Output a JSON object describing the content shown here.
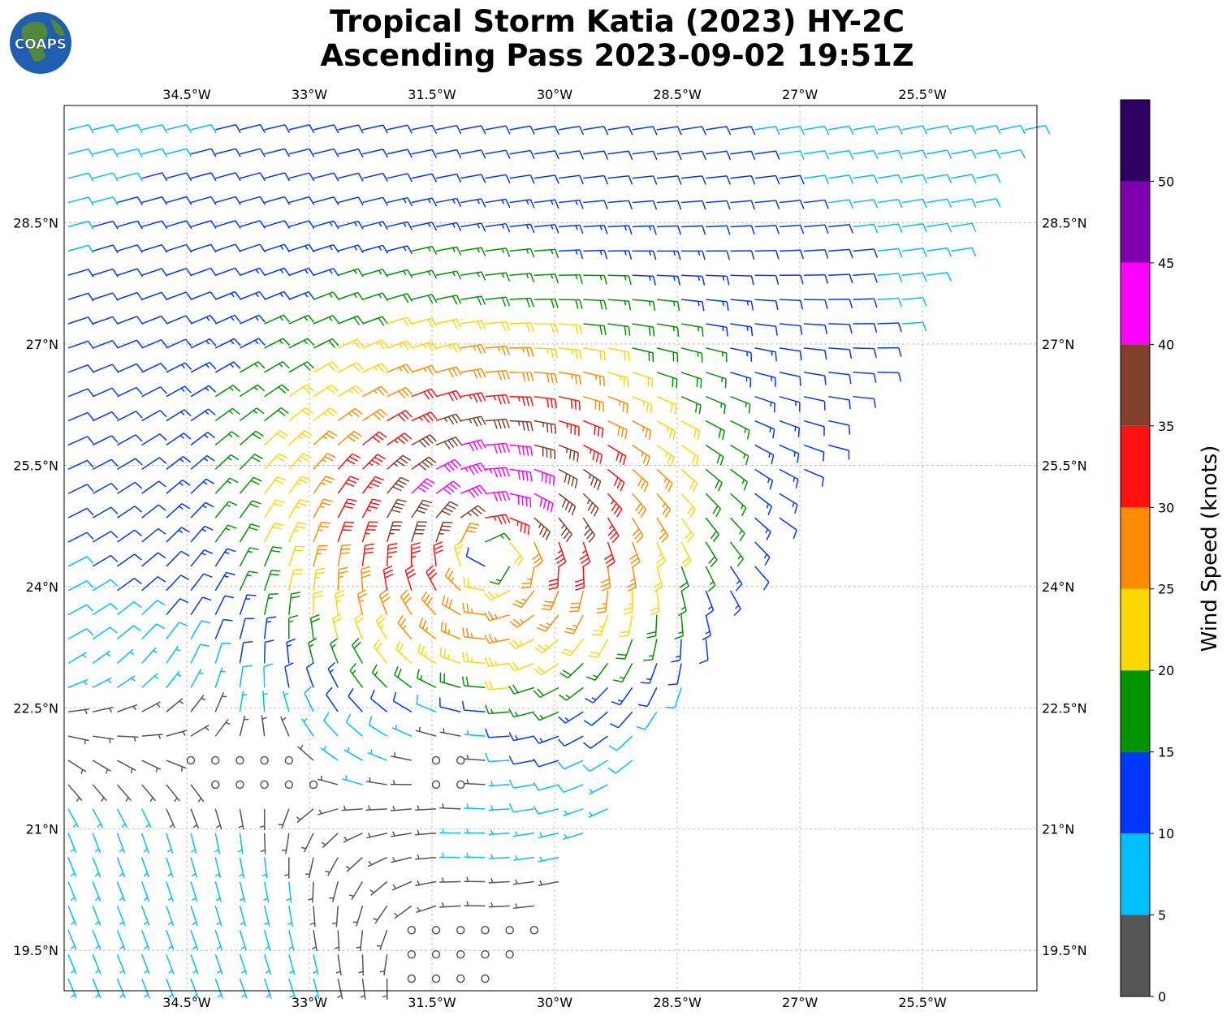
{
  "title": {
    "line1": "Tropical Storm Katia (2023) HY-2C",
    "line2": "Ascending Pass 2023-09-02 19:51Z"
  },
  "logo": {
    "text": "COAPS",
    "icon": "globe-logo-icon"
  },
  "map": {
    "lon_range": [
      -36.0,
      -24.1
    ],
    "lat_range": [
      19.0,
      29.95
    ],
    "lon_ticks": [
      {
        "value": -34.5,
        "label": "34.5°W"
      },
      {
        "value": -33.0,
        "label": "33°W"
      },
      {
        "value": -31.5,
        "label": "31.5°W"
      },
      {
        "value": -30.0,
        "label": "30°W"
      },
      {
        "value": -28.5,
        "label": "28.5°W"
      },
      {
        "value": -27.0,
        "label": "27°W"
      },
      {
        "value": -25.5,
        "label": "25.5°W"
      }
    ],
    "lat_ticks": [
      {
        "value": 28.5,
        "label": "28.5°N"
      },
      {
        "value": 27.0,
        "label": "27°N"
      },
      {
        "value": 25.5,
        "label": "25.5°N"
      },
      {
        "value": 24.0,
        "label": "24°N"
      },
      {
        "value": 22.5,
        "label": "22.5°N"
      },
      {
        "value": 21.0,
        "label": "21°N"
      },
      {
        "value": 19.5,
        "label": "19.5°N"
      }
    ],
    "gridlines": true,
    "storm_center": {
      "lon": -30.8,
      "lat": 24.5
    },
    "calm_center": {
      "lon": -31.3,
      "lat": 21.8
    },
    "swath_edge": [
      {
        "lon": -24.0,
        "lat": 30.0
      },
      {
        "lon": -30.7,
        "lat": 19.0
      }
    ]
  },
  "colorbar": {
    "label": "Wind Speed (knots)",
    "ticks": [
      "0",
      "5",
      "10",
      "15",
      "20",
      "25",
      "30",
      "35",
      "40",
      "45",
      "50"
    ],
    "bins": [
      {
        "from": 0,
        "to": 5,
        "color": "#555555"
      },
      {
        "from": 5,
        "to": 10,
        "color": "#00bfff"
      },
      {
        "from": 10,
        "to": 15,
        "color": "#0037ff"
      },
      {
        "from": 15,
        "to": 20,
        "color": "#009400"
      },
      {
        "from": 20,
        "to": 25,
        "color": "#ffd700"
      },
      {
        "from": 25,
        "to": 30,
        "color": "#ff8c00"
      },
      {
        "from": 30,
        "to": 35,
        "color": "#ff1010"
      },
      {
        "from": 35,
        "to": 40,
        "color": "#7f3f2a"
      },
      {
        "from": 40,
        "to": 45,
        "color": "#ff00ff"
      },
      {
        "from": 45,
        "to": 50,
        "color": "#8000b0"
      },
      {
        "from": 50,
        "to": 55,
        "color": "#2c0060"
      }
    ]
  }
}
